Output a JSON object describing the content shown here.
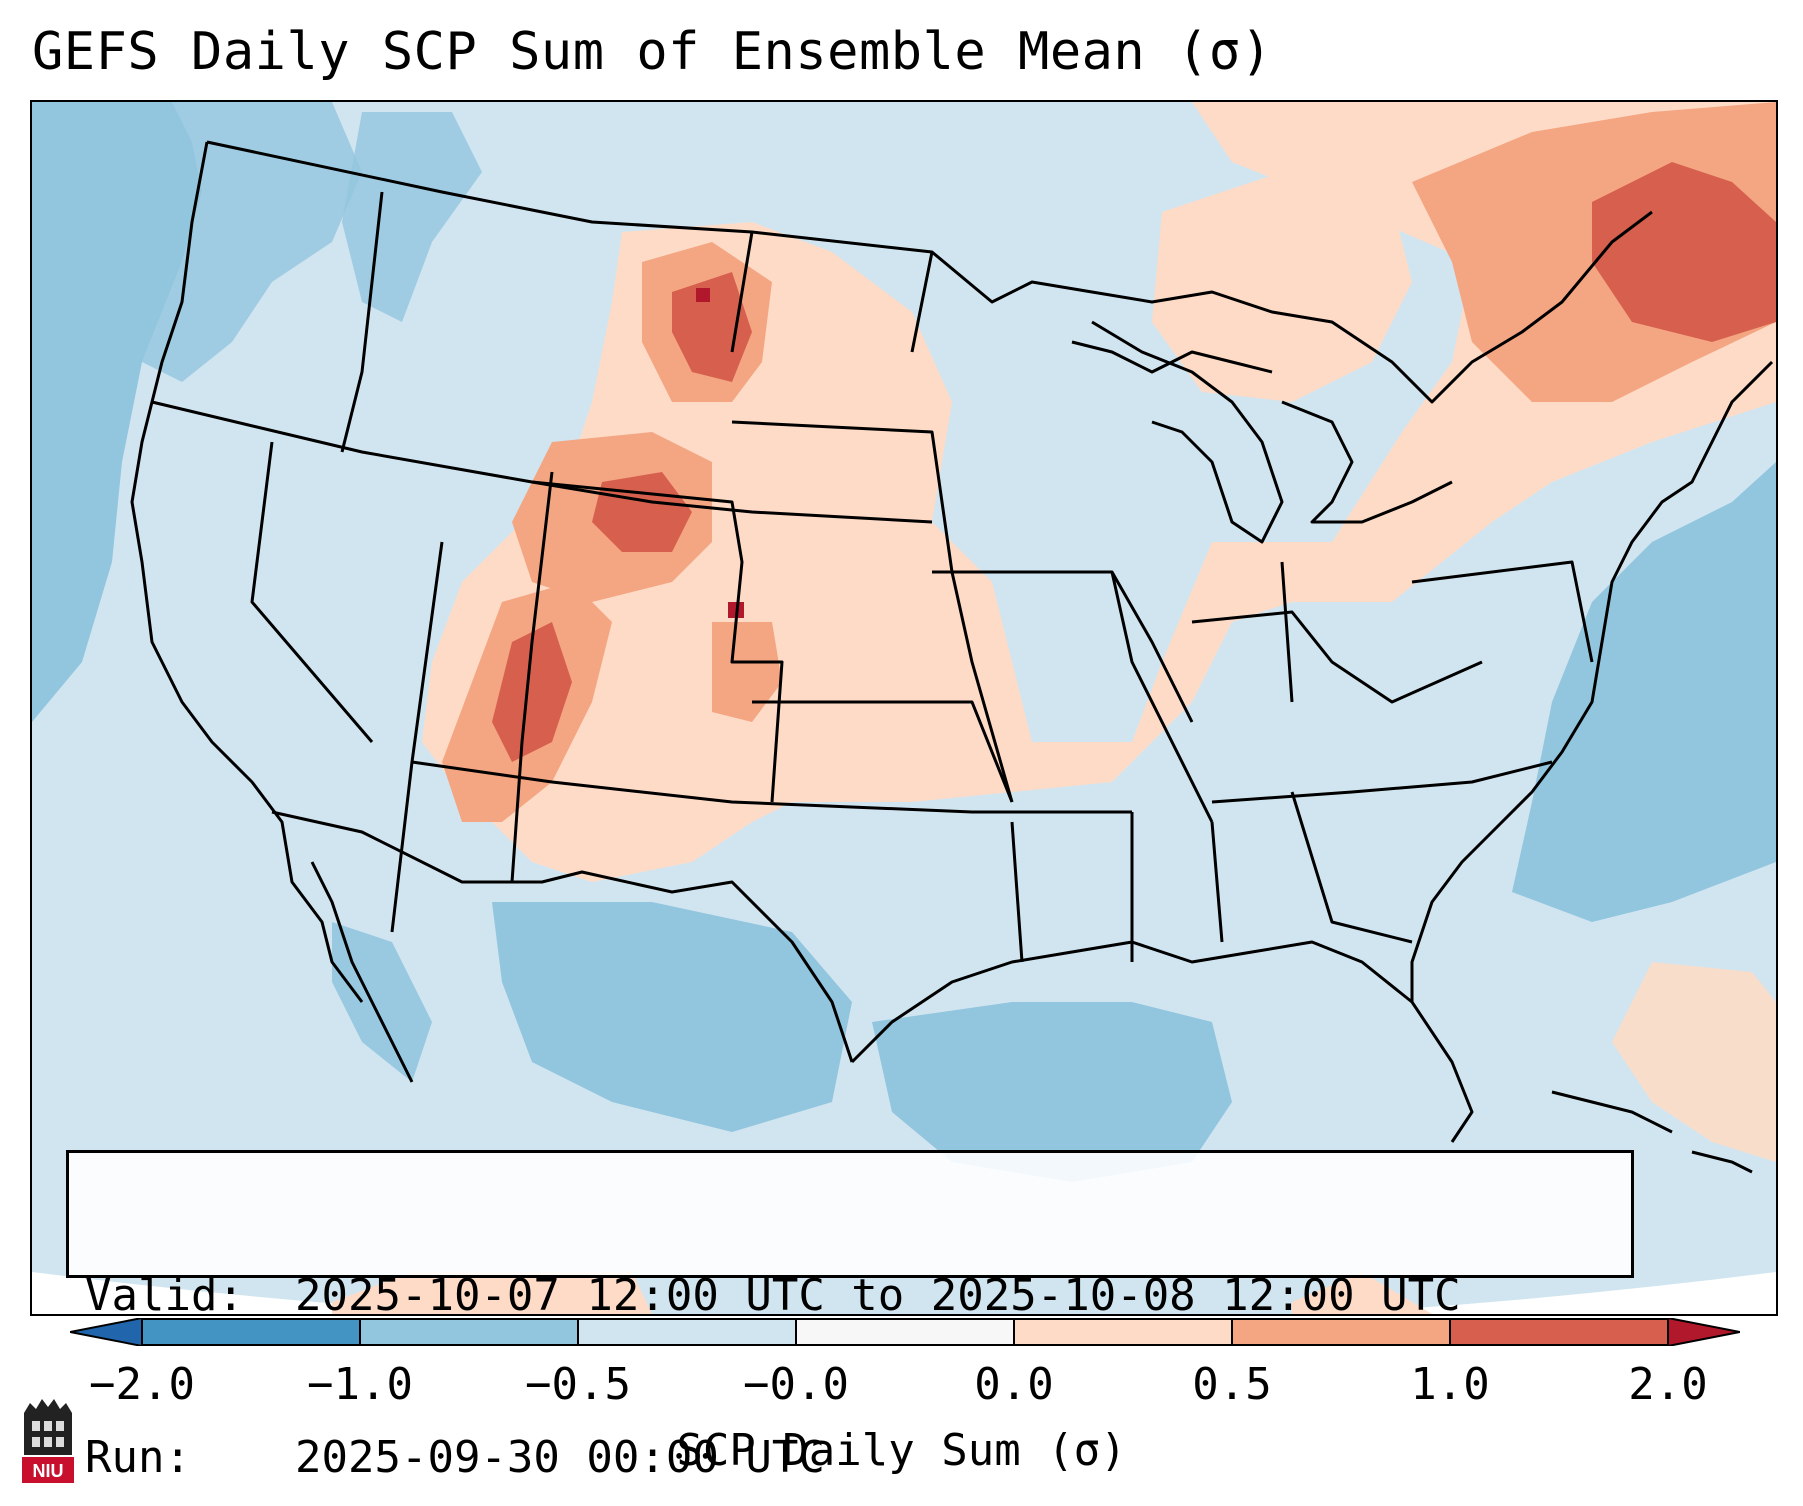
{
  "title": "GEFS Daily SCP Sum of Ensemble Mean (σ)",
  "info": {
    "valid_label": "Valid:",
    "valid_value": "2025-10-07 12:00 UTC to 2025-10-08 12:00 UTC",
    "run_label": "Run:",
    "run_value": "2025-09-30 00:00 UTC"
  },
  "colorbar": {
    "label": "SCP Daily Sum (σ)",
    "ticks": [
      "−2.0",
      "−1.0",
      "−0.5",
      "−0.0",
      "0.0",
      "0.5",
      "1.0",
      "2.0"
    ],
    "colors": [
      "#4393c3",
      "#92c5de",
      "#d1e5f0",
      "#f7f7f7",
      "#fddbc7",
      "#f4a582",
      "#d6604d",
      "#b2182b"
    ],
    "under_color": "#2166ac",
    "over_color": "#b2182b"
  },
  "map": {
    "ocean_color": "#92c5de",
    "land_base_color": "#d1e5f0",
    "border_color": "#000000"
  },
  "logo": {
    "text": "NIU",
    "color": "#c8102e"
  }
}
